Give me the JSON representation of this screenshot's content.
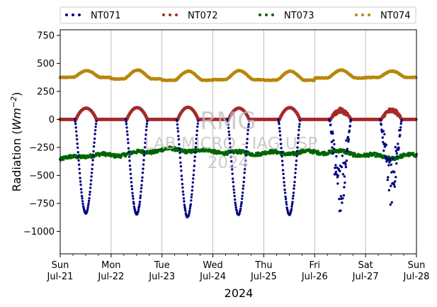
{
  "chart_data": {
    "type": "scatter",
    "title": "",
    "xlabel": "2024",
    "ylabel": "Radiation (Wm−2)",
    "ylabel_parts": {
      "prefix": "Radiation (",
      "var": "Wm",
      "exp": "−2",
      "suffix": ")"
    },
    "x_range": [
      "2024-07-21 00:00",
      "2024-07-28 00:00"
    ],
    "ylim": [
      -1200,
      800
    ],
    "y_ticks": [
      -1000,
      -750,
      -500,
      -250,
      0,
      250,
      500,
      750
    ],
    "y_tick_labels": [
      "−1000",
      "−750",
      "−500",
      "−250",
      "0",
      "250",
      "500",
      "750"
    ],
    "x_ticks": [
      {
        "date": "2024-07-21",
        "day": "Sun",
        "label": "Jul-21"
      },
      {
        "date": "2024-07-22",
        "day": "Mon",
        "label": "Jul-22"
      },
      {
        "date": "2024-07-23",
        "day": "Tue",
        "label": "Jul-23"
      },
      {
        "date": "2024-07-24",
        "day": "Wed",
        "label": "Jul-24"
      },
      {
        "date": "2024-07-25",
        "day": "Thu",
        "label": "Jul-25"
      },
      {
        "date": "2024-07-26",
        "day": "Fri",
        "label": "Jul-26"
      },
      {
        "date": "2024-07-27",
        "day": "Sat",
        "label": "Jul-27"
      },
      {
        "date": "2024-07-28",
        "day": "Sun",
        "label": "Jul-28"
      }
    ],
    "grid": "vertical",
    "legend_position": "top",
    "watermark": [
      "RMG",
      "LAB MICRO - IAG USP",
      "2024"
    ],
    "series": [
      {
        "name": "NT071",
        "color": "#000080",
        "description": "daily negative trough, ~0 at night",
        "daily_trough": [
          {
            "date": "2024-07-21",
            "min": -840
          },
          {
            "date": "2024-07-22",
            "min": -845
          },
          {
            "date": "2024-07-23",
            "min": -870
          },
          {
            "date": "2024-07-24",
            "min": -850
          },
          {
            "date": "2024-07-25",
            "min": -850
          },
          {
            "date": "2024-07-26",
            "min": -850
          },
          {
            "date": "2024-07-27",
            "min": -770
          }
        ]
      },
      {
        "name": "NT072",
        "color": "#a52a2a",
        "description": "0 at night, daytime peak",
        "daily_peak": [
          {
            "date": "2024-07-21",
            "max": 100
          },
          {
            "date": "2024-07-22",
            "max": 105
          },
          {
            "date": "2024-07-23",
            "max": 108
          },
          {
            "date": "2024-07-24",
            "max": 100
          },
          {
            "date": "2024-07-25",
            "max": 105
          },
          {
            "date": "2024-07-26",
            "max": 100
          },
          {
            "date": "2024-07-27",
            "max": 100
          }
        ]
      },
      {
        "name": "NT073",
        "color": "#006400",
        "description": "noisy around -300",
        "points": [
          {
            "x": "2024-07-21 00:00",
            "y": -360
          },
          {
            "x": "2024-07-21 12:00",
            "y": -320
          },
          {
            "x": "2024-07-22 00:00",
            "y": -320
          },
          {
            "x": "2024-07-22 12:00",
            "y": -300
          },
          {
            "x": "2024-07-23 00:00",
            "y": -270
          },
          {
            "x": "2024-07-23 12:00",
            "y": -275
          },
          {
            "x": "2024-07-24 00:00",
            "y": -285
          },
          {
            "x": "2024-07-24 12:00",
            "y": -300
          },
          {
            "x": "2024-07-25 00:00",
            "y": -300
          },
          {
            "x": "2024-07-25 12:00",
            "y": -300
          },
          {
            "x": "2024-07-26 00:00",
            "y": -290
          },
          {
            "x": "2024-07-26 12:00",
            "y": -290
          },
          {
            "x": "2024-07-27 00:00",
            "y": -320
          },
          {
            "x": "2024-07-27 12:00",
            "y": -340
          },
          {
            "x": "2024-07-28 00:00",
            "y": -320
          }
        ]
      },
      {
        "name": "NT074",
        "color": "#b8860b",
        "description": "night ~355-380, daytime peak",
        "daily_peak": [
          {
            "date": "2024-07-21",
            "base": 375,
            "max": 435
          },
          {
            "date": "2024-07-22",
            "base": 362,
            "max": 440
          },
          {
            "date": "2024-07-23",
            "base": 350,
            "max": 430
          },
          {
            "date": "2024-07-24",
            "base": 355,
            "max": 435
          },
          {
            "date": "2024-07-25",
            "base": 350,
            "max": 430
          },
          {
            "date": "2024-07-26",
            "base": 370,
            "max": 440
          },
          {
            "date": "2024-07-27",
            "base": 375,
            "max": 430
          }
        ]
      }
    ]
  }
}
